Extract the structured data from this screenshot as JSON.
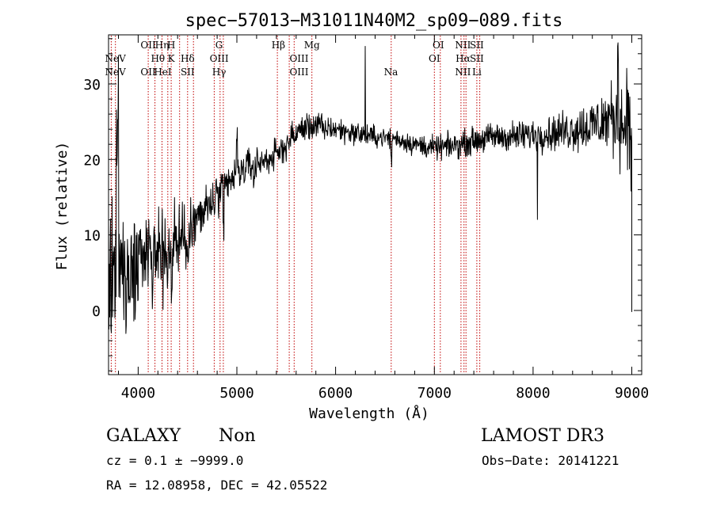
{
  "chart_data": {
    "type": "line",
    "title": "spec−57013−M31011N40M2_sp09−089.fits",
    "xlabel": "Wavelength (Å)",
    "ylabel": "Flux (relative)",
    "xlim": [
      3700,
      9100
    ],
    "ylim": [
      -8.5,
      36.5
    ],
    "xticks": [
      4000,
      5000,
      6000,
      7000,
      8000,
      9000
    ],
    "yticks": [
      0,
      10,
      20,
      30
    ],
    "grid": false,
    "legend": "none",
    "line_color": "#000000",
    "marker_color": "#c00000",
    "continuum": [
      [
        3700,
        4
      ],
      [
        3800,
        5
      ],
      [
        3900,
        6
      ],
      [
        4000,
        6.5
      ],
      [
        4100,
        7
      ],
      [
        4200,
        7.5
      ],
      [
        4300,
        8
      ],
      [
        4400,
        9
      ],
      [
        4500,
        10
      ],
      [
        4600,
        12
      ],
      [
        4700,
        13.5
      ],
      [
        4800,
        15
      ],
      [
        4900,
        16.5
      ],
      [
        5000,
        18
      ],
      [
        5100,
        19
      ],
      [
        5200,
        19.5
      ],
      [
        5300,
        20
      ],
      [
        5400,
        20.5
      ],
      [
        5500,
        22
      ],
      [
        5600,
        23.5
      ],
      [
        5700,
        24.3
      ],
      [
        5800,
        24.5
      ],
      [
        6000,
        24
      ],
      [
        6200,
        23.5
      ],
      [
        6400,
        23
      ],
      [
        6600,
        22.8
      ],
      [
        6800,
        22
      ],
      [
        7000,
        21.5
      ],
      [
        7200,
        21.8
      ],
      [
        7400,
        22.5
      ],
      [
        7600,
        23
      ],
      [
        7800,
        23
      ],
      [
        8000,
        23.3
      ],
      [
        8200,
        23.5
      ],
      [
        8400,
        24
      ],
      [
        8600,
        24.5
      ],
      [
        8800,
        25.5
      ],
      [
        9000,
        24
      ]
    ],
    "noise": [
      [
        3700,
        5.5
      ],
      [
        4000,
        4.5
      ],
      [
        4300,
        3.5
      ],
      [
        4600,
        2.5
      ],
      [
        4900,
        1.6
      ],
      [
        5300,
        1.2
      ],
      [
        5600,
        1.2
      ],
      [
        6500,
        0.8
      ],
      [
        7500,
        1.1
      ],
      [
        8200,
        1.4
      ],
      [
        8600,
        2.2
      ],
      [
        9000,
        3.5
      ]
    ],
    "features": [
      [
        3790,
        13,
        20
      ],
      [
        4340,
        5,
        -8
      ],
      [
        4863,
        5,
        -6
      ],
      [
        5000,
        5,
        5
      ],
      [
        5175,
        8,
        -2
      ],
      [
        5890,
        5,
        -2
      ],
      [
        6300,
        2,
        11
      ],
      [
        6563,
        5,
        -3
      ],
      [
        8045,
        2,
        -11
      ],
      [
        8860,
        4,
        10
      ],
      [
        8950,
        3,
        9
      ],
      [
        8990,
        3,
        -6
      ]
    ],
    "line_markers": [
      {
        "wavelength": 3727,
        "label": "",
        "row": 0
      },
      {
        "wavelength": 3770,
        "label": "NeV",
        "row": 1
      },
      {
        "wavelength": 3770,
        "label": "NeV",
        "row": 2
      },
      {
        "wavelength": 4102,
        "label": "OII",
        "row": 2
      },
      {
        "wavelength": 4102,
        "label": "OII",
        "row": 0
      },
      {
        "wavelength": 4200,
        "label": "Hθ",
        "row": 1
      },
      {
        "wavelength": 4242,
        "label": "Hη",
        "row": 0
      },
      {
        "wavelength": 4250,
        "label": "HeI",
        "row": 2
      },
      {
        "wavelength": 4335,
        "label": "H",
        "row": 0
      },
      {
        "wavelength": 4335,
        "label": "K",
        "row": 1
      },
      {
        "wavelength": 4420,
        "label": "",
        "row": 0
      },
      {
        "wavelength": 4501,
        "label": "Hδ",
        "row": 1
      },
      {
        "wavelength": 4501,
        "label": "SII",
        "row": 2
      },
      {
        "wavelength": 4820,
        "label": "G",
        "row": 0
      },
      {
        "wavelength": 4820,
        "label": "OIII",
        "row": 1
      },
      {
        "wavelength": 4820,
        "label": "Hγ",
        "row": 2
      },
      {
        "wavelength": 5420,
        "label": "Hβ",
        "row": 0
      },
      {
        "wavelength": 5630,
        "label": "OIII",
        "row": 1
      },
      {
        "wavelength": 5630,
        "label": "OIII",
        "row": 2
      },
      {
        "wavelength": 5760,
        "label": "Mg",
        "row": 0
      },
      {
        "wavelength": 6560,
        "label": "Na",
        "row": 2
      },
      {
        "wavelength": 7040,
        "label": "OI",
        "row": 0
      },
      {
        "wavelength": 7000,
        "label": "OI",
        "row": 1
      },
      {
        "wavelength": 7290,
        "label": "NII",
        "row": 0
      },
      {
        "wavelength": 7290,
        "label": "Hα",
        "row": 1
      },
      {
        "wavelength": 7290,
        "label": "NII",
        "row": 2
      },
      {
        "wavelength": 7430,
        "label": "SII",
        "row": 0
      },
      {
        "wavelength": 7430,
        "label": "SII",
        "row": 1
      },
      {
        "wavelength": 7430,
        "label": "Li",
        "row": 2
      }
    ],
    "marker_lines": [
      3727,
      3770,
      4102,
      4170,
      4242,
      4300,
      4335,
      4420,
      4501,
      4560,
      4770,
      4830,
      4863,
      5410,
      5530,
      5580,
      5760,
      6563,
      7000,
      7060,
      7270,
      7300,
      7320,
      7430,
      7460
    ]
  },
  "info": {
    "object_class": "GALAXY",
    "object_subclass": "Non",
    "survey": "LAMOST DR3",
    "redshift": "cz = 0.1 ± −9999.0",
    "obs_date": "Obs−Date: 20141221",
    "coords": "RA =  12.08958, DEC =  42.05522"
  }
}
